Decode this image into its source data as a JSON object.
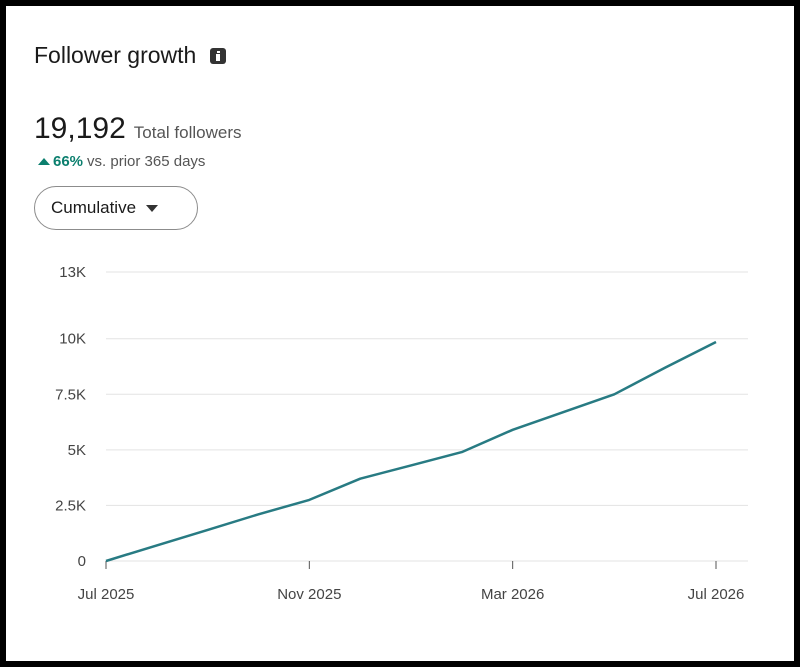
{
  "header": {
    "title": "Follower growth",
    "info_icon": "info-icon"
  },
  "summary": {
    "total": "19,192",
    "total_label": "Total followers",
    "change_pct": "66%",
    "change_label": "vs. prior 365 days",
    "change_icon": "triangle-up-icon",
    "change_color": "#0b7f6e"
  },
  "filter": {
    "selected": "Cumulative",
    "icon": "caret-down-icon"
  },
  "chart_data": {
    "type": "line",
    "series": [
      {
        "color": "#287b83",
        "points": [
          [
            "Jul 2025",
            0
          ],
          [
            "Aug 2025",
            700
          ],
          [
            "Sep 2025",
            1400
          ],
          [
            "Oct 2025",
            2100
          ],
          [
            "Nov 2025",
            2750
          ],
          [
            "Dec 2025",
            3700
          ],
          [
            "Jan 2026",
            4300
          ],
          [
            "Feb 2026",
            4900
          ],
          [
            "Mar 2026",
            5900
          ],
          [
            "Apr 2026",
            6700
          ],
          [
            "May 2026",
            7500
          ],
          [
            "Jun 2026",
            8700
          ],
          [
            "Jul 2026",
            9850
          ]
        ]
      }
    ],
    "y_ticks": [
      {
        "v": 0,
        "label": "0"
      },
      {
        "v": 2500,
        "label": "2.5K"
      },
      {
        "v": 5000,
        "label": "5K"
      },
      {
        "v": 7500,
        "label": "7.5K"
      },
      {
        "v": 10000,
        "label": "10K"
      },
      {
        "v": 13000,
        "label": "13K"
      }
    ],
    "x_ticks": [
      {
        "x": "Jul 2025",
        "label": "Jul 2025"
      },
      {
        "x": "Nov 2025",
        "label": "Nov 2025"
      },
      {
        "x": "Mar 2026",
        "label": "Mar 2026"
      },
      {
        "x": "Jul 2026",
        "label": "Jul 2026"
      }
    ],
    "ylim": [
      0,
      13000
    ],
    "grid": true
  }
}
